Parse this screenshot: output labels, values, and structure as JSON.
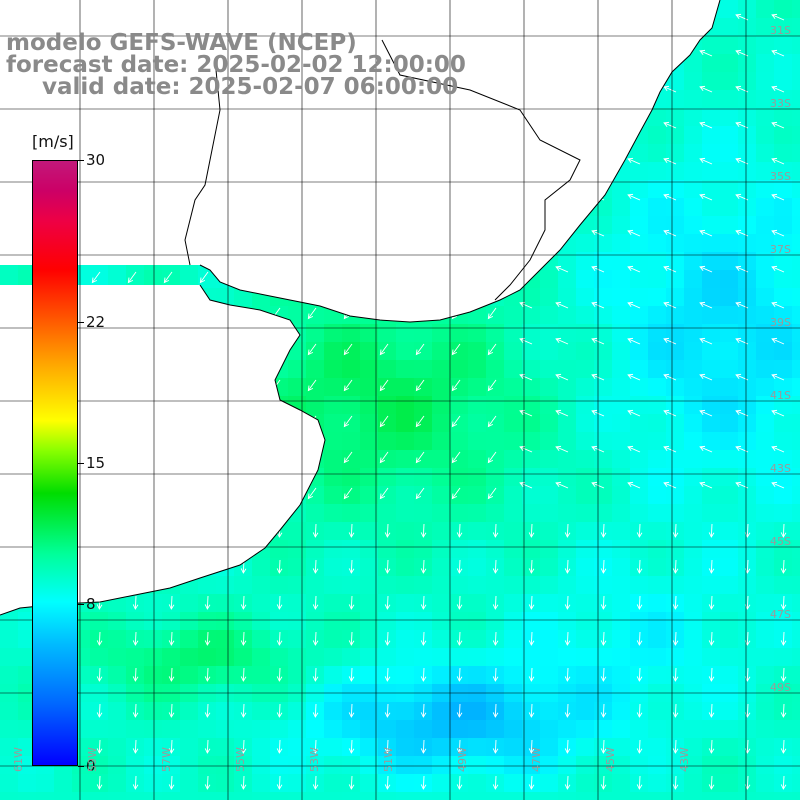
{
  "title": {
    "line1": "modelo GEFS-WAVE (NCEP)",
    "line2": "forecast date: 2025-02-02 12:00:00",
    "line3": "valid date: 2025-02-07 06:00:00"
  },
  "colorbar": {
    "unit": "[m/s]",
    "ticks": [
      {
        "label": "30",
        "value": 30
      },
      {
        "label": "22",
        "value": 22
      },
      {
        "label": "15",
        "value": 15
      },
      {
        "label": "8",
        "value": 8
      },
      {
        "label": "0",
        "value": 0
      }
    ],
    "min": 0,
    "max": 30
  },
  "map": {
    "lat_labels": [
      "31S",
      "33S",
      "35S",
      "37S",
      "39S",
      "41S",
      "43S",
      "45S",
      "47S",
      "49S"
    ],
    "lon_labels": [
      "61W",
      "59W",
      "57W",
      "55W",
      "53W",
      "51W",
      "49W",
      "47W",
      "45W",
      "43W"
    ],
    "colors": {
      "land": "#ffffff",
      "coast": "#000000",
      "grid": "#000000",
      "arrows": "#ffffff"
    }
  }
}
